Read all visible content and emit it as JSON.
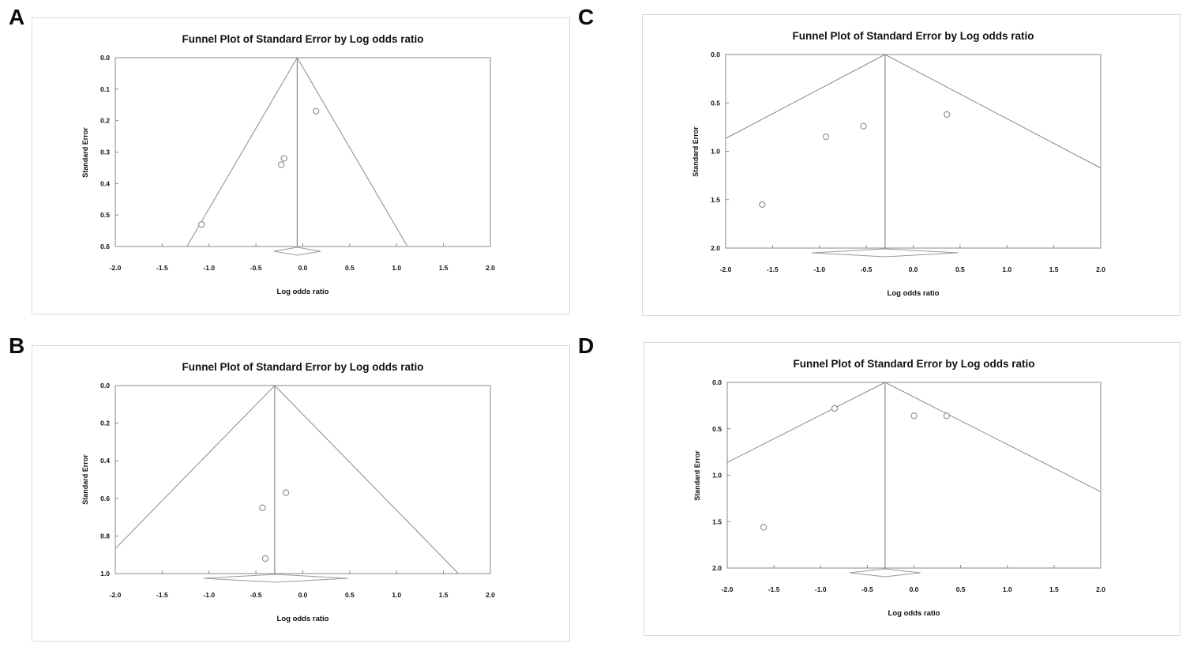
{
  "figure": {
    "background": "#ffffff",
    "panel_letters": [
      "A",
      "B",
      "C",
      "D"
    ]
  },
  "colors": {
    "text": "#111111",
    "plot_line": "#8a8a8a",
    "frame": "#8a8a8a",
    "point_stroke": "#8a8a8a",
    "diamond_stroke": "#9a9a9a",
    "panel_border": "#d8d8d8"
  },
  "chart_data": [
    {
      "label": "A",
      "type": "scatter",
      "title": "Funnel Plot of Standard Error by Log odds ratio",
      "xlabel": "Log odds ratio",
      "ylabel": "Standard Error",
      "xlim": [
        -2.0,
        2.0
      ],
      "ylim": [
        0.0,
        0.6
      ],
      "x_ticks": [
        -2.0,
        -1.5,
        -1.0,
        -0.5,
        0.0,
        0.5,
        1.0,
        1.5,
        2.0
      ],
      "y_ticks": [
        0.0,
        0.1,
        0.2,
        0.3,
        0.4,
        0.5,
        0.6
      ],
      "pooled_center": -0.06,
      "funnel_slope": 1.96,
      "points": [
        {
          "x": 0.14,
          "se": 0.17
        },
        {
          "x": -0.2,
          "se": 0.32
        },
        {
          "x": -0.23,
          "se": 0.34
        },
        {
          "x": -1.08,
          "se": 0.53
        }
      ],
      "diamond": {
        "center": -0.06,
        "half_width": 0.25
      },
      "grid": false,
      "legend": "none"
    },
    {
      "label": "B",
      "type": "scatter",
      "title": "Funnel Plot of Standard Error by Log odds ratio",
      "xlabel": "Log odds ratio",
      "ylabel": "Standard Error",
      "xlim": [
        -2.0,
        2.0
      ],
      "ylim": [
        0.0,
        1.0
      ],
      "x_ticks": [
        -2.0,
        -1.5,
        -1.0,
        -0.5,
        0.0,
        0.5,
        1.0,
        1.5,
        2.0
      ],
      "y_ticks": [
        0.0,
        0.2,
        0.4,
        0.6,
        0.8,
        1.0
      ],
      "pooled_center": -0.3,
      "funnel_slope": 1.96,
      "points": [
        {
          "x": -0.18,
          "se": 0.57
        },
        {
          "x": -0.43,
          "se": 0.65
        },
        {
          "x": -0.4,
          "se": 0.92
        }
      ],
      "diamond": {
        "center": -0.29,
        "half_width": 0.77
      },
      "grid": false,
      "legend": "none"
    },
    {
      "label": "C",
      "type": "scatter",
      "title": "Funnel Plot of Standard Error by Log odds ratio",
      "xlabel": "Log odds ratio",
      "ylabel": "Standard Error",
      "xlim": [
        -2.0,
        2.0
      ],
      "ylim": [
        0.0,
        2.0
      ],
      "x_ticks": [
        -2.0,
        -1.5,
        -1.0,
        -0.5,
        0.0,
        0.5,
        1.0,
        1.5,
        2.0
      ],
      "y_ticks": [
        0.0,
        0.5,
        1.0,
        1.5,
        2.0
      ],
      "pooled_center": -0.3,
      "funnel_slope": 1.96,
      "points": [
        {
          "x": 0.36,
          "se": 0.62
        },
        {
          "x": -0.53,
          "se": 0.74
        },
        {
          "x": -0.93,
          "se": 0.85
        },
        {
          "x": -1.61,
          "se": 1.55
        }
      ],
      "diamond": {
        "center": -0.3,
        "half_width": 0.78
      },
      "grid": false,
      "legend": "none"
    },
    {
      "label": "D",
      "type": "scatter",
      "title": "Funnel Plot of Standard Error by Log odds ratio",
      "xlabel": "Log odds ratio",
      "ylabel": "Standard Error",
      "xlim": [
        -2.0,
        2.0
      ],
      "ylim": [
        0.0,
        2.0
      ],
      "x_ticks": [
        -2.0,
        -1.5,
        -1.0,
        -0.5,
        0.0,
        0.5,
        1.0,
        1.5,
        2.0
      ],
      "y_ticks": [
        0.0,
        0.5,
        1.0,
        1.5,
        2.0
      ],
      "pooled_center": -0.31,
      "funnel_slope": 1.96,
      "points": [
        {
          "x": -0.85,
          "se": 0.28
        },
        {
          "x": 0.0,
          "se": 0.36
        },
        {
          "x": 0.35,
          "se": 0.36
        },
        {
          "x": -1.61,
          "se": 1.56
        }
      ],
      "diamond": {
        "center": -0.31,
        "half_width": 0.38
      },
      "grid": false,
      "legend": "none"
    }
  ]
}
